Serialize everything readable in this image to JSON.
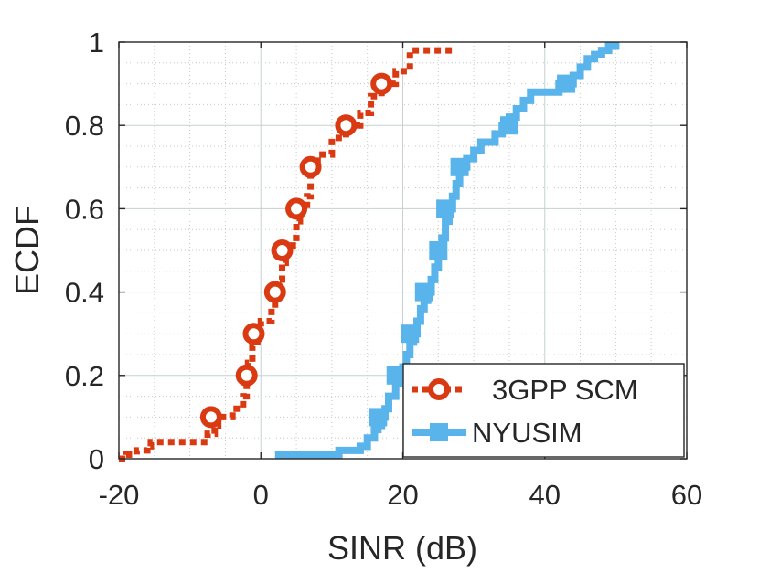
{
  "chart_data": {
    "type": "line",
    "title": "",
    "xlabel": "SINR (dB)",
    "ylabel": "ECDF",
    "xlim": [
      -20,
      60
    ],
    "ylim": [
      0,
      1
    ],
    "xticks": [
      -20,
      0,
      20,
      40,
      60
    ],
    "xtick_labels": [
      "-20",
      "0",
      "20",
      "40",
      "60"
    ],
    "yticks": [
      0,
      0.2,
      0.4,
      0.6,
      0.8,
      1
    ],
    "ytick_labels": [
      "0",
      "0.2",
      "0.4",
      "0.6",
      "0.8",
      "1"
    ],
    "grid": true,
    "minor_grid": true,
    "legend_position": "bottom-right",
    "series": [
      {
        "name": "3GPP SCM",
        "color": "#d93a12",
        "line_style": "dotted",
        "marker": "circle",
        "x": [
          -20,
          -19,
          -17.5,
          -16,
          -15.5,
          -9,
          -7.5,
          -6.5,
          -6,
          -4,
          -2.5,
          -2,
          -1.8,
          -1.2,
          -0.5,
          0,
          1.5,
          2,
          2.5,
          3,
          3.5,
          4.5,
          5,
          5.5,
          6.5,
          7,
          8,
          10,
          12,
          14,
          15.5,
          17,
          19,
          21,
          27
        ],
        "y": [
          0,
          0.01,
          0.02,
          0.03,
          0.04,
          0.04,
          0.06,
          0.08,
          0.1,
          0.12,
          0.15,
          0.2,
          0.23,
          0.27,
          0.3,
          0.33,
          0.37,
          0.4,
          0.43,
          0.47,
          0.5,
          0.53,
          0.57,
          0.6,
          0.63,
          0.7,
          0.73,
          0.77,
          0.8,
          0.83,
          0.87,
          0.9,
          0.93,
          0.98,
          0.98
        ],
        "marker_x": [
          -7,
          -2,
          -1,
          2,
          3,
          5,
          7,
          12,
          17
        ],
        "marker_y": [
          0.1,
          0.2,
          0.3,
          0.4,
          0.5,
          0.6,
          0.7,
          0.8,
          0.9
        ]
      },
      {
        "name": "NYUSIM",
        "color": "#5ab4ec",
        "line_style": "solid",
        "marker": "square",
        "x": [
          2,
          10,
          11,
          14,
          15,
          16,
          16.5,
          17,
          17.5,
          18,
          19,
          19.5,
          20,
          20.5,
          21,
          21.5,
          22,
          22.5,
          23,
          23.5,
          24,
          24.5,
          25,
          25.5,
          26,
          26.5,
          27,
          27.5,
          28,
          29,
          30,
          31,
          32,
          33,
          34,
          35,
          36,
          37,
          38,
          39,
          40,
          41,
          42,
          43,
          44,
          45,
          46,
          47,
          48,
          49,
          50
        ],
        "y": [
          0.01,
          0.01,
          0.02,
          0.03,
          0.05,
          0.07,
          0.08,
          0.1,
          0.12,
          0.15,
          0.18,
          0.2,
          0.22,
          0.25,
          0.28,
          0.3,
          0.33,
          0.36,
          0.38,
          0.4,
          0.43,
          0.46,
          0.5,
          0.53,
          0.57,
          0.6,
          0.63,
          0.66,
          0.7,
          0.72,
          0.74,
          0.76,
          0.76,
          0.78,
          0.8,
          0.82,
          0.84,
          0.86,
          0.88,
          0.88,
          0.88,
          0.88,
          0.9,
          0.9,
          0.92,
          0.94,
          0.96,
          0.97,
          0.98,
          0.99,
          1.0
        ],
        "marker_x": [
          16.5,
          19,
          21,
          23,
          25,
          26,
          28,
          35,
          43
        ],
        "marker_y": [
          0.1,
          0.2,
          0.3,
          0.4,
          0.5,
          0.6,
          0.7,
          0.8,
          0.9
        ]
      }
    ]
  }
}
